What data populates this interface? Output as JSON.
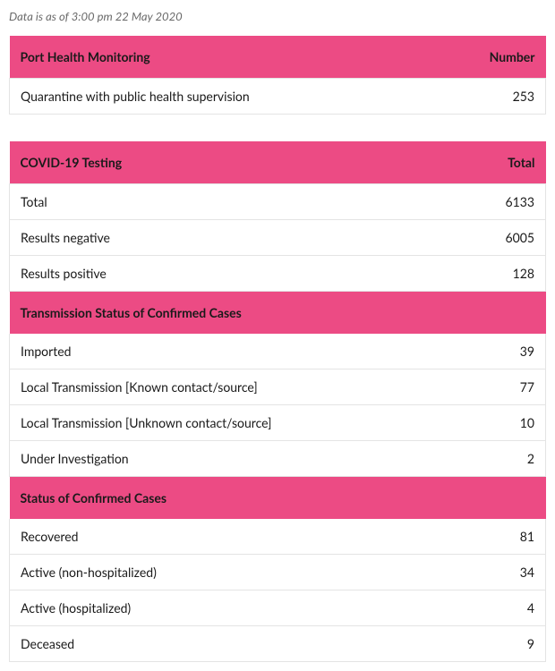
{
  "timestamp": "Data is as of 3:00 pm 22 May 2020",
  "table1": {
    "header_label": "Port Health Monitoring",
    "header_num": "Number",
    "rows": [
      {
        "label": "Quarantine with public health supervision",
        "value": "253"
      }
    ]
  },
  "table2": {
    "header_label": "COVID-19 Testing",
    "header_num": "Total",
    "sections": [
      {
        "rows": [
          {
            "label": "Total",
            "value": "6133"
          },
          {
            "label": "Results negative",
            "value": "6005"
          },
          {
            "label": "Results positive",
            "value": "128"
          }
        ]
      },
      {
        "title": "Transmission Status of Confirmed Cases",
        "rows": [
          {
            "label": "Imported",
            "value": "39"
          },
          {
            "label": "Local Transmission [Known contact/source]",
            "value": "77"
          },
          {
            "label": "Local Transmission [Unknown contact/source]",
            "value": "10"
          },
          {
            "label": "Under Investigation",
            "value": "2"
          }
        ]
      },
      {
        "title": "Status of Confirmed Cases",
        "rows": [
          {
            "label": "Recovered",
            "value": "81"
          },
          {
            "label": "Active (non-hospitalized)",
            "value": "34"
          },
          {
            "label": "Active (hospitalized)",
            "value": "4"
          },
          {
            "label": "Deceased",
            "value": "9"
          }
        ]
      }
    ]
  },
  "colors": {
    "header_bg": "#ec4b84",
    "border": "#e4e4e4",
    "text": "#1a1a1a",
    "timestamp": "#6a6a6a",
    "background": "#ffffff"
  }
}
